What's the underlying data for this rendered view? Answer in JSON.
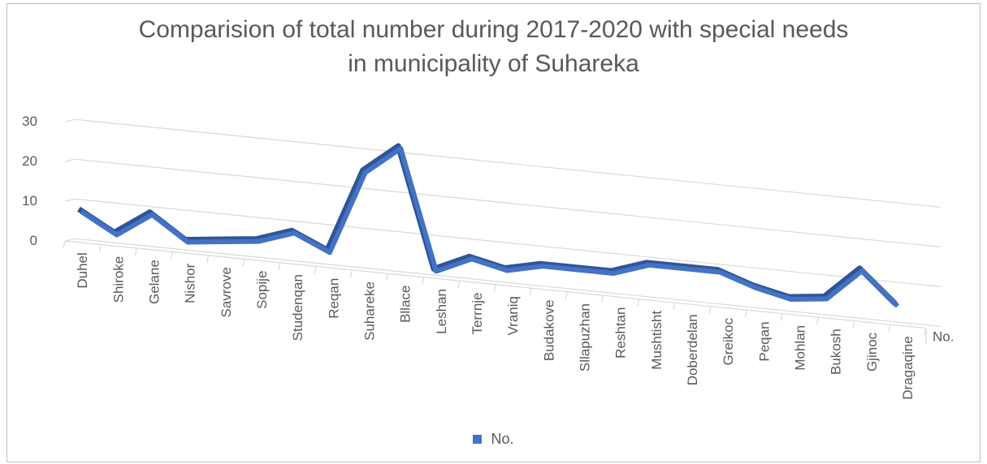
{
  "chart_data": {
    "type": "line",
    "title_lines": [
      "Comparision of total number during 2017-2020  with special needs",
      "in municipality of Suhareka"
    ],
    "categories": [
      "Duhel",
      "Shiroke",
      "Gelane",
      "Nishor",
      "Savrove",
      "Sopije",
      "Studenqan",
      "Reqan",
      "Suhareke",
      "Bllace",
      "Leshan",
      "Terrnje",
      "Vraniq",
      "Budakove",
      "Sllapuzhan",
      "Reshtan",
      "Mushtisht",
      "Doberdelan",
      "Greikoc",
      "Peqan",
      "Mohlan",
      "Bukosh",
      "Gjinoc",
      "Dragaqine"
    ],
    "series": [
      {
        "name": "No.",
        "values": [
          7,
          2,
          8,
          2,
          3,
          4,
          7,
          3,
          24,
          31,
          1,
          5,
          3,
          5,
          5,
          5,
          8,
          8,
          8,
          5,
          3,
          4,
          12,
          4
        ]
      }
    ],
    "yticks": [
      0,
      10,
      20,
      30
    ],
    "ylim": [
      0,
      30
    ],
    "depth_label": "No.",
    "legend_position": "bottom",
    "grid": true,
    "colors": {
      "series": "#4472c4",
      "series_dark": "#2f5597",
      "grid": "#d9d9d9",
      "text": "#595959"
    }
  },
  "legend": {
    "label": "No."
  }
}
